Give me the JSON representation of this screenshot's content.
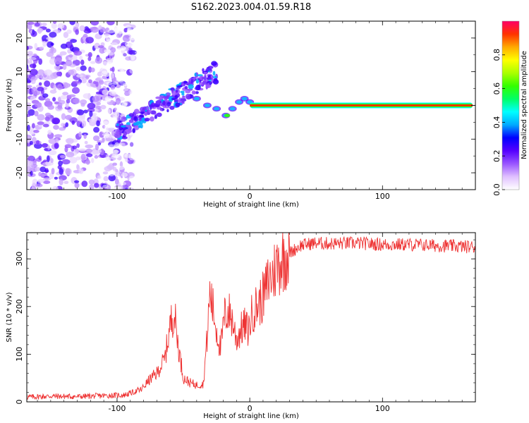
{
  "figure_title": "S162.2023.004.01.59.R18",
  "chart_data": [
    {
      "type": "heatmap",
      "title": "",
      "xlabel": "Height of straight line (km)",
      "ylabel": "Frequency (Hz)",
      "xlim": [
        -168,
        170
      ],
      "ylim": [
        -25,
        25
      ],
      "x_ticks": [
        "-100",
        "0",
        "100"
      ],
      "y_ticks": [
        "-20",
        "-10",
        "0",
        "10",
        "20"
      ],
      "colorbar": {
        "label": "Normalized spectral amplitude",
        "range": [
          0,
          1
        ],
        "ticks": [
          "0.0",
          "0.2",
          "0.4",
          "0.6",
          "0.8"
        ],
        "colormap": [
          "#ffffff",
          "#e0c0ff",
          "#9955ff",
          "#5500ff",
          "#0000ff",
          "#00aaff",
          "#00ffff",
          "#00ff66",
          "#33ff00",
          "#aaff00",
          "#ffff00",
          "#ffaa00",
          "#ff3300",
          "#ff0066"
        ]
      },
      "line": {
        "x_start": 0,
        "x_end": 168,
        "frequency": 0,
        "colors": {
          "outer": "#00ffff",
          "mid": "#33ff00",
          "core": "#ff2200"
        }
      }
    },
    {
      "type": "line",
      "title": "",
      "xlabel": "Height of straight line (km)",
      "ylabel": "SNR (10 * v/v)",
      "xlim": [
        -168,
        170
      ],
      "ylim": [
        0,
        355
      ],
      "x_ticks": [
        "-100",
        "0",
        "100"
      ],
      "y_ticks": [
        "0",
        "100",
        "200",
        "300"
      ],
      "series": [
        {
          "color": "#ee3333",
          "x": [
            -168,
            -150,
            -130,
            -110,
            -95,
            -88,
            -82,
            -76,
            -70,
            -64,
            -60,
            -57,
            -54,
            -50,
            -45,
            -40,
            -35,
            -32,
            -30,
            -28,
            -25,
            -22,
            -19,
            -16,
            -13,
            -10,
            -7,
            -4,
            -1,
            2,
            5,
            8,
            11,
            14,
            17,
            20,
            23,
            26,
            30,
            34,
            38,
            42,
            46,
            50,
            60,
            80,
            100,
            120,
            140,
            160,
            170
          ],
          "y": [
            10,
            12,
            11,
            13,
            14,
            20,
            25,
            45,
            60,
            90,
            160,
            190,
            120,
            50,
            40,
            35,
            38,
            140,
            230,
            200,
            150,
            110,
            180,
            190,
            170,
            130,
            150,
            160,
            150,
            190,
            200,
            210,
            225,
            255,
            265,
            285,
            295,
            305,
            312,
            320,
            328,
            330,
            332,
            333,
            332,
            333,
            330,
            330,
            328,
            326,
            325
          ]
        }
      ]
    }
  ]
}
